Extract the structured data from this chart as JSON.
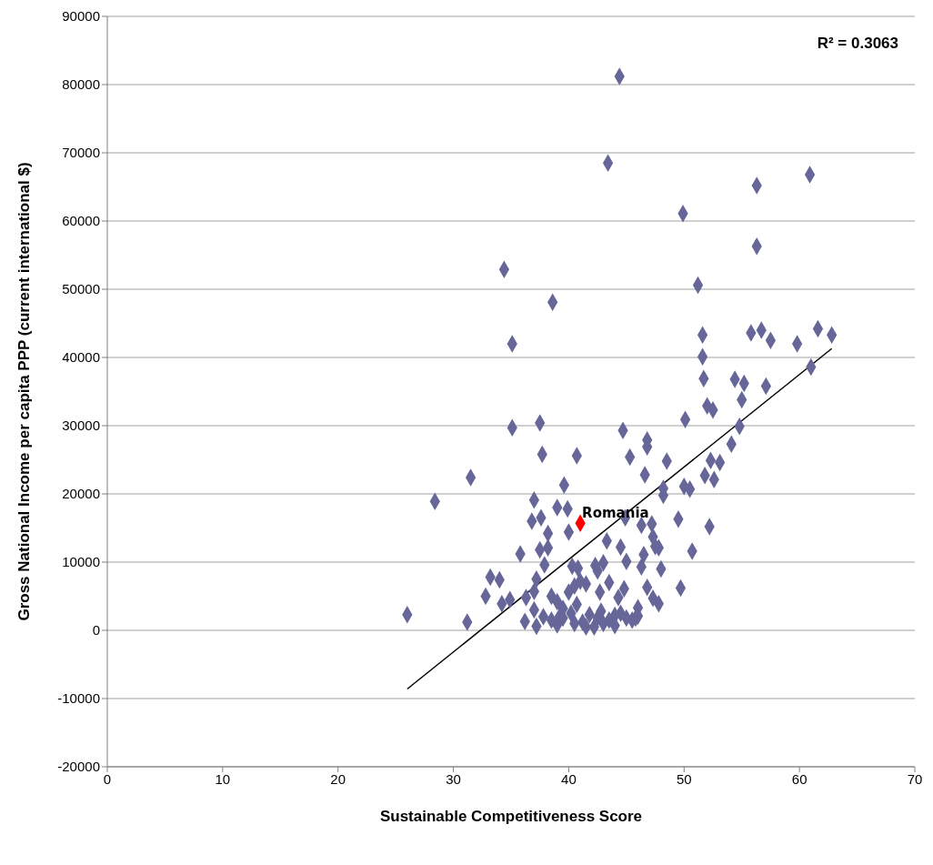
{
  "chart_data": {
    "type": "scatter",
    "xlabel": "Sustainable Competitiveness Score",
    "ylabel": "Gross National Income per capita PPP (current international $)",
    "xlim": [
      0,
      70
    ],
    "xticks": [
      0,
      10,
      20,
      30,
      40,
      50,
      60,
      70
    ],
    "ylim": [
      -20000,
      90000
    ],
    "yticks": [
      -20000,
      -10000,
      0,
      10000,
      20000,
      30000,
      40000,
      50000,
      60000,
      70000,
      80000,
      90000
    ],
    "grid": "y",
    "legend": false,
    "marker": "diamond",
    "annotations": [
      "R² = 0.3063",
      {
        "text": "Romania",
        "x": 41.0,
        "y": 15700
      }
    ],
    "series": [
      {
        "color": "#666699",
        "x": [
          26.0,
          28.4,
          31.5,
          31.2,
          32.8,
          33.2,
          34.0,
          34.4,
          35.1,
          35.1,
          34.9,
          34.2,
          35.8,
          36.3,
          36.2,
          37.0,
          36.8,
          37.5,
          37.7,
          37.6,
          37.5,
          38.2,
          38.2,
          37.9,
          37.2,
          37.0,
          37.0,
          37.2,
          37.8,
          38.6,
          39.0,
          39.6,
          39.9,
          40.0,
          40.7,
          40.3,
          40.8,
          38.5,
          39.0,
          39.5,
          40.0,
          40.5,
          41.0,
          41.5,
          38.5,
          39.0,
          39.5,
          40.2,
          40.7,
          41.2,
          41.8,
          42.2,
          42.5,
          42.8,
          42.3,
          42.5,
          43.0,
          42.7,
          43.3,
          43.5,
          43.4,
          44.4,
          43.5,
          44.0,
          44.3,
          44.5,
          44.7,
          44.9,
          45.0,
          44.8,
          45.3,
          45.0,
          45.5,
          46.0,
          46.0,
          46.3,
          46.5,
          46.3,
          46.6,
          46.8,
          46.8,
          47.2,
          47.3,
          47.5,
          47.8,
          46.8,
          47.3,
          47.8,
          48.0,
          48.2,
          48.2,
          48.5,
          49.5,
          49.7,
          49.9,
          50.0,
          50.1,
          50.5,
          50.7,
          51.2,
          51.6,
          51.6,
          51.7,
          51.8,
          52.0,
          52.3,
          52.2,
          52.5,
          52.6,
          53.1,
          54.1,
          54.4,
          54.8,
          55.0,
          55.2,
          55.8,
          56.3,
          56.3,
          56.7,
          57.1,
          57.5,
          59.8,
          60.9,
          61.0,
          61.6,
          62.8,
          41.5,
          43.0,
          44.0,
          44.5,
          45.8,
          40.5,
          39.2
        ],
        "values": [
          2300,
          18900,
          22400,
          1200,
          5000,
          7800,
          7400,
          52900,
          42000,
          29700,
          4500,
          3900,
          11200,
          4800,
          1300,
          19100,
          16000,
          30400,
          25800,
          16500,
          11800,
          12100,
          14200,
          9600,
          7500,
          5700,
          3000,
          600,
          2000,
          48100,
          18000,
          21300,
          17800,
          14400,
          25600,
          9400,
          9100,
          5000,
          4200,
          3200,
          5600,
          6500,
          7200,
          6800,
          1500,
          800,
          1800,
          2500,
          3800,
          1200,
          2300,
          500,
          1800,
          2800,
          9500,
          8700,
          9900,
          5600,
          13100,
          7000,
          68500,
          81200,
          1500,
          2200,
          4800,
          12200,
          29300,
          16500,
          10100,
          6100,
          25400,
          1800,
          1500,
          3300,
          2100,
          9300,
          11100,
          15400,
          22800,
          26900,
          27900,
          15600,
          13700,
          12300,
          12100,
          6300,
          4700,
          3900,
          9000,
          19800,
          20800,
          24800,
          16300,
          6200,
          61100,
          21100,
          30900,
          20700,
          11600,
          50600,
          43300,
          40100,
          36900,
          22700,
          32900,
          24900,
          15200,
          32300,
          22100,
          24600,
          27300,
          36800,
          29900,
          33800,
          36200,
          43600,
          65200,
          56300,
          44000,
          35800,
          42500,
          42000,
          66800,
          38600,
          44200,
          43300,
          500,
          1000,
          700,
          2500,
          1800,
          1000,
          2000
        ]
      },
      {
        "color": "#ff0000",
        "x": [
          41.0
        ],
        "values": [
          15700
        ]
      },
      {
        "type": "line",
        "color": "#000000",
        "marker": "none",
        "line_style": "solid",
        "x": [
          26.0,
          62.8
        ],
        "values": [
          -8600,
          41300
        ]
      }
    ]
  }
}
